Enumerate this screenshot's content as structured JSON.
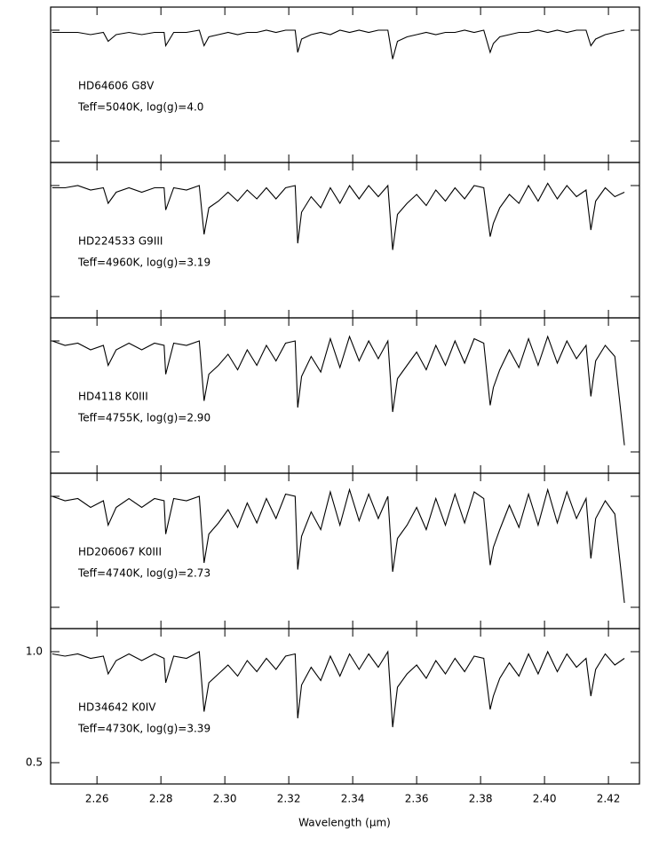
{
  "chart_data": [
    {
      "type": "line",
      "color": "#000000",
      "annotations": [
        "HD64606 G8V",
        "Teff=5040K, log(g)=4.0"
      ],
      "x": [
        2.246,
        2.25,
        2.254,
        2.258,
        2.262,
        2.2635,
        2.266,
        2.27,
        2.274,
        2.278,
        2.281,
        2.2815,
        2.284,
        2.288,
        2.292,
        2.2935,
        2.295,
        2.298,
        2.301,
        2.304,
        2.307,
        2.31,
        2.313,
        2.316,
        2.319,
        2.322,
        2.3228,
        2.324,
        2.327,
        2.33,
        2.333,
        2.336,
        2.339,
        2.342,
        2.345,
        2.348,
        2.351,
        2.3525,
        2.354,
        2.357,
        2.36,
        2.363,
        2.366,
        2.369,
        2.372,
        2.375,
        2.378,
        2.381,
        2.383,
        2.384,
        2.386,
        2.389,
        2.392,
        2.395,
        2.398,
        2.401,
        2.404,
        2.407,
        2.41,
        2.413,
        2.4145,
        2.416,
        2.419,
        2.422,
        2.425
      ],
      "values": [
        0.99,
        0.99,
        0.99,
        0.98,
        0.99,
        0.95,
        0.98,
        0.99,
        0.98,
        0.99,
        0.99,
        0.93,
        0.99,
        0.99,
        1.0,
        0.93,
        0.97,
        0.98,
        0.99,
        0.98,
        0.99,
        0.99,
        1.0,
        0.99,
        1.0,
        1.0,
        0.9,
        0.96,
        0.98,
        0.99,
        0.98,
        1.0,
        0.99,
        1.0,
        0.99,
        1.0,
        1.0,
        0.87,
        0.95,
        0.97,
        0.98,
        0.99,
        0.98,
        0.99,
        0.99,
        1.0,
        0.99,
        1.0,
        0.9,
        0.94,
        0.97,
        0.98,
        0.99,
        0.99,
        1.0,
        0.99,
        1.0,
        0.99,
        1.0,
        1.0,
        0.93,
        0.96,
        0.98,
        0.99,
        1.0
      ],
      "ylim": [
        0.404,
        1.104
      ],
      "yticks": [
        {
          "value": 1,
          "label": "1.0"
        },
        0.5
      ],
      "ytick_labels": false
    },
    {
      "type": "line",
      "color": "#000000",
      "annotations": [
        "HD224533 G9III",
        "Teff=4960K, log(g)=3.19"
      ],
      "x": [
        2.246,
        2.25,
        2.254,
        2.258,
        2.262,
        2.2635,
        2.266,
        2.27,
        2.274,
        2.278,
        2.281,
        2.2815,
        2.284,
        2.288,
        2.292,
        2.2935,
        2.295,
        2.298,
        2.301,
        2.304,
        2.307,
        2.31,
        2.313,
        2.316,
        2.319,
        2.322,
        2.3228,
        2.324,
        2.327,
        2.33,
        2.333,
        2.336,
        2.339,
        2.342,
        2.345,
        2.348,
        2.351,
        2.3525,
        2.354,
        2.357,
        2.36,
        2.363,
        2.366,
        2.369,
        2.372,
        2.375,
        2.378,
        2.381,
        2.383,
        2.384,
        2.386,
        2.389,
        2.392,
        2.395,
        2.398,
        2.401,
        2.404,
        2.407,
        2.41,
        2.413,
        2.4145,
        2.416,
        2.419,
        2.422,
        2.425
      ],
      "values": [
        0.99,
        0.99,
        1.0,
        0.98,
        0.99,
        0.92,
        0.97,
        0.99,
        0.97,
        0.99,
        0.99,
        0.89,
        0.99,
        0.98,
        1.0,
        0.78,
        0.9,
        0.93,
        0.97,
        0.93,
        0.98,
        0.94,
        0.99,
        0.94,
        0.99,
        1.0,
        0.74,
        0.88,
        0.95,
        0.9,
        0.99,
        0.92,
        1.0,
        0.94,
        1.0,
        0.95,
        1.0,
        0.71,
        0.87,
        0.92,
        0.96,
        0.91,
        0.98,
        0.93,
        0.99,
        0.94,
        1.0,
        0.99,
        0.77,
        0.83,
        0.9,
        0.96,
        0.92,
        1.0,
        0.93,
        1.01,
        0.94,
        1.0,
        0.95,
        0.98,
        0.8,
        0.93,
        0.99,
        0.95,
        0.97
      ],
      "ylim": [
        0.404,
        1.104
      ],
      "yticks": [
        {
          "value": 1,
          "label": "1.0"
        },
        0.5
      ],
      "ytick_labels": false
    },
    {
      "type": "line",
      "color": "#000000",
      "annotations": [
        "HD4118 K0III",
        "Teff=4755K, log(g)=2.90"
      ],
      "x": [
        2.246,
        2.25,
        2.254,
        2.258,
        2.262,
        2.2635,
        2.266,
        2.27,
        2.274,
        2.278,
        2.281,
        2.2815,
        2.284,
        2.288,
        2.292,
        2.2935,
        2.295,
        2.298,
        2.301,
        2.304,
        2.307,
        2.31,
        2.313,
        2.316,
        2.319,
        2.322,
        2.3228,
        2.324,
        2.327,
        2.33,
        2.333,
        2.336,
        2.339,
        2.342,
        2.345,
        2.348,
        2.351,
        2.3525,
        2.354,
        2.357,
        2.36,
        2.363,
        2.366,
        2.369,
        2.372,
        2.375,
        2.378,
        2.381,
        2.383,
        2.384,
        2.386,
        2.389,
        2.392,
        2.395,
        2.398,
        2.401,
        2.404,
        2.407,
        2.41,
        2.413,
        2.4145,
        2.416,
        2.419,
        2.422,
        2.425
      ],
      "values": [
        1.0,
        0.98,
        0.99,
        0.96,
        0.98,
        0.89,
        0.96,
        0.99,
        0.96,
        0.99,
        0.98,
        0.85,
        0.99,
        0.98,
        1.0,
        0.73,
        0.85,
        0.89,
        0.94,
        0.87,
        0.96,
        0.89,
        0.98,
        0.91,
        0.99,
        1.0,
        0.7,
        0.84,
        0.93,
        0.86,
        1.01,
        0.88,
        1.02,
        0.91,
        1.0,
        0.92,
        1.0,
        0.68,
        0.83,
        0.89,
        0.95,
        0.87,
        0.98,
        0.89,
        1.0,
        0.9,
        1.01,
        0.99,
        0.71,
        0.79,
        0.87,
        0.96,
        0.88,
        1.01,
        0.89,
        1.02,
        0.9,
        1.0,
        0.92,
        0.98,
        0.75,
        0.91,
        0.98,
        0.93,
        0.53
      ],
      "ylim": [
        0.404,
        1.104
      ],
      "yticks": [
        {
          "value": 1,
          "label": "1.0"
        },
        0.5
      ],
      "ytick_labels": false
    },
    {
      "type": "line",
      "color": "#000000",
      "annotations": [
        "HD206067 K0III",
        "Teff=4740K, log(g)=2.73"
      ],
      "x": [
        2.246,
        2.25,
        2.254,
        2.258,
        2.262,
        2.2635,
        2.266,
        2.27,
        2.274,
        2.278,
        2.281,
        2.2815,
        2.284,
        2.288,
        2.292,
        2.2935,
        2.295,
        2.298,
        2.301,
        2.304,
        2.307,
        2.31,
        2.313,
        2.316,
        2.319,
        2.322,
        2.3228,
        2.324,
        2.327,
        2.33,
        2.333,
        2.336,
        2.339,
        2.342,
        2.345,
        2.348,
        2.351,
        2.3525,
        2.354,
        2.357,
        2.36,
        2.363,
        2.366,
        2.369,
        2.372,
        2.375,
        2.378,
        2.381,
        2.383,
        2.384,
        2.386,
        2.389,
        2.392,
        2.395,
        2.398,
        2.401,
        2.404,
        2.407,
        2.41,
        2.413,
        2.4145,
        2.416,
        2.419,
        2.422,
        2.425
      ],
      "values": [
        1.0,
        0.98,
        0.99,
        0.95,
        0.98,
        0.87,
        0.95,
        0.99,
        0.95,
        0.99,
        0.98,
        0.83,
        0.99,
        0.98,
        1.0,
        0.7,
        0.83,
        0.88,
        0.94,
        0.86,
        0.97,
        0.88,
        0.99,
        0.9,
        1.01,
        1.0,
        0.67,
        0.82,
        0.93,
        0.85,
        1.02,
        0.87,
        1.03,
        0.89,
        1.01,
        0.9,
        1.0,
        0.66,
        0.81,
        0.87,
        0.95,
        0.85,
        0.99,
        0.87,
        1.01,
        0.88,
        1.02,
        0.99,
        0.69,
        0.77,
        0.85,
        0.96,
        0.86,
        1.01,
        0.87,
        1.03,
        0.88,
        1.02,
        0.9,
        0.99,
        0.72,
        0.9,
        0.98,
        0.92,
        0.52
      ],
      "ylim": [
        0.404,
        1.104
      ],
      "yticks": [
        {
          "value": 1,
          "label": "1.0"
        },
        0.5
      ],
      "ytick_labels": false
    },
    {
      "type": "line",
      "color": "#000000",
      "annotations": [
        "HD34642 K0IV",
        "Teff=4730K, log(g)=3.39"
      ],
      "x": [
        2.246,
        2.25,
        2.254,
        2.258,
        2.262,
        2.2635,
        2.266,
        2.27,
        2.274,
        2.278,
        2.281,
        2.2815,
        2.284,
        2.288,
        2.292,
        2.2935,
        2.295,
        2.298,
        2.301,
        2.304,
        2.307,
        2.31,
        2.313,
        2.316,
        2.319,
        2.322,
        2.3228,
        2.324,
        2.327,
        2.33,
        2.333,
        2.336,
        2.339,
        2.342,
        2.345,
        2.348,
        2.351,
        2.3525,
        2.354,
        2.357,
        2.36,
        2.363,
        2.366,
        2.369,
        2.372,
        2.375,
        2.378,
        2.381,
        2.383,
        2.384,
        2.386,
        2.389,
        2.392,
        2.395,
        2.398,
        2.401,
        2.404,
        2.407,
        2.41,
        2.413,
        2.4145,
        2.416,
        2.419,
        2.422,
        2.425
      ],
      "values": [
        0.99,
        0.98,
        0.99,
        0.97,
        0.98,
        0.9,
        0.96,
        0.99,
        0.96,
        0.99,
        0.97,
        0.86,
        0.98,
        0.97,
        1.0,
        0.73,
        0.86,
        0.9,
        0.94,
        0.89,
        0.96,
        0.91,
        0.97,
        0.92,
        0.98,
        0.99,
        0.7,
        0.85,
        0.93,
        0.87,
        0.98,
        0.89,
        0.99,
        0.92,
        0.99,
        0.93,
        1.0,
        0.66,
        0.84,
        0.9,
        0.94,
        0.88,
        0.96,
        0.9,
        0.97,
        0.91,
        0.98,
        0.97,
        0.74,
        0.8,
        0.88,
        0.95,
        0.89,
        0.99,
        0.9,
        1.0,
        0.91,
        0.99,
        0.93,
        0.97,
        0.8,
        0.92,
        0.99,
        0.94,
        0.97
      ],
      "ylim": [
        0.404,
        1.104
      ],
      "yticks": [
        {
          "value": 1,
          "label": "1.0"
        },
        0.5
      ],
      "ytick_labels": true,
      "xlabel": "Wavelength (μm)",
      "xlim": [
        2.2455,
        2.4297
      ],
      "xticks": [
        2.26,
        2.28,
        {
          "value": 2.3,
          "label": "2.30"
        },
        2.32,
        2.34,
        2.36,
        2.38,
        {
          "value": 2.4,
          "label": "2.40"
        },
        2.42
      ]
    }
  ]
}
